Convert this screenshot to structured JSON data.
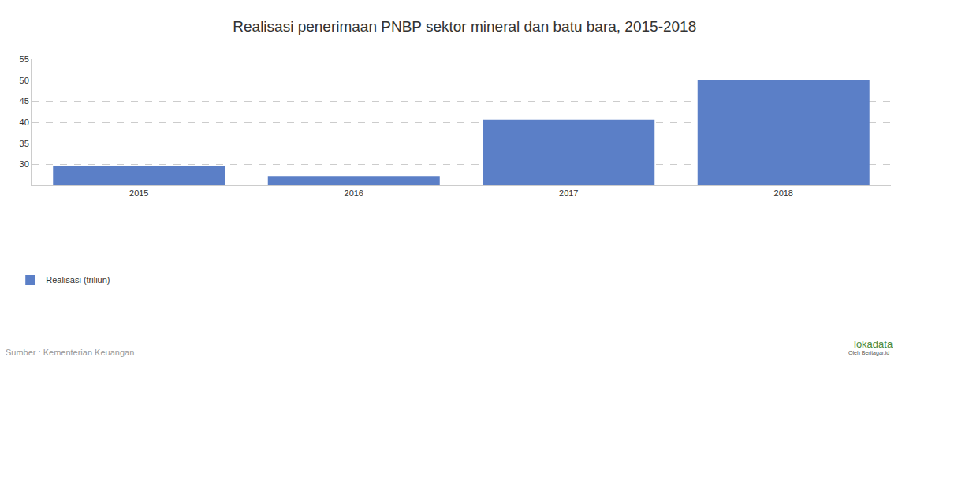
{
  "chart_data": {
    "type": "bar",
    "title": "Realisasi penerimaan PNBP sektor mineral dan batu bara, 2015-2018",
    "categories": [
      "2015",
      "2016",
      "2017",
      "2018"
    ],
    "series": [
      {
        "name": "Realisasi (triliun)",
        "color": "#5b7fc7",
        "values": [
          29.6,
          27.2,
          40.6,
          50.0
        ]
      }
    ],
    "ylim": [
      25,
      55
    ],
    "yticks": [
      30,
      35,
      40,
      45,
      50,
      55
    ],
    "grid": true,
    "legend": "bottom-left",
    "annotations": [
      "Sumber : Kementerian Keuangan",
      "lokadata",
      "Oleh Beritagar.id"
    ]
  }
}
